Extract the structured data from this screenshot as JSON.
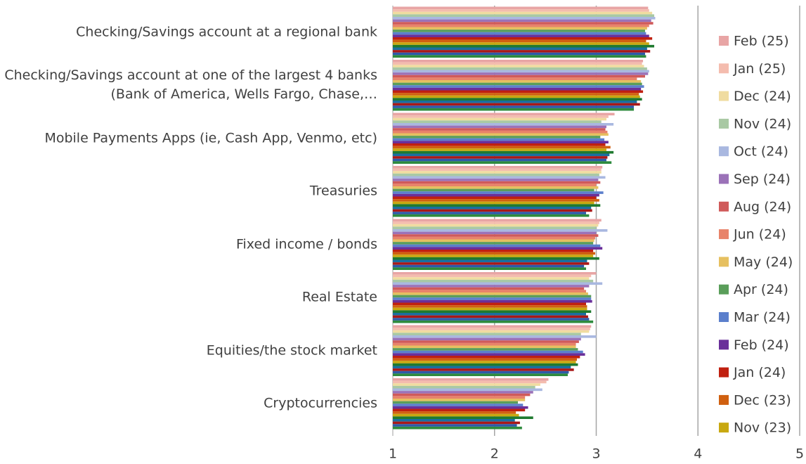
{
  "chart_data": {
    "type": "bar",
    "orientation": "horizontal",
    "categories": [
      "Checking/Savings account at a regional bank",
      "Checking/Savings account at one of the largest 4 banks (Bank of America, Wells Fargo, Chase,…",
      "Mobile Payments Apps (ie, Cash App, Venmo, etc)",
      "Treasuries",
      "Fixed income / bonds",
      "Real Estate",
      "Equities/the stock market",
      "Cryptocurrencies"
    ],
    "xlim": [
      1,
      5
    ],
    "xticks": [
      1,
      2,
      3,
      4,
      5
    ],
    "grid": true,
    "legend": "right",
    "series": [
      {
        "name": "Feb (25)",
        "color": "#e8a5a5",
        "values": [
          3.51,
          3.46,
          3.18,
          3.06,
          3.05,
          3.0,
          2.95,
          2.53
        ]
      },
      {
        "name": "Jan (25)",
        "color": "#f4bcae",
        "values": [
          3.52,
          3.45,
          3.12,
          3.05,
          3.03,
          2.95,
          2.94,
          2.51
        ]
      },
      {
        "name": "Dec (24)",
        "color": "#f0dca0",
        "values": [
          3.55,
          3.47,
          3.1,
          3.05,
          3.02,
          2.93,
          2.93,
          2.45
        ]
      },
      {
        "name": "Nov (24)",
        "color": "#a9c9a4",
        "values": [
          3.57,
          3.5,
          3.05,
          3.03,
          3.0,
          2.97,
          2.85,
          2.4
        ]
      },
      {
        "name": "Oct (24)",
        "color": "#a9b8e0",
        "values": [
          3.58,
          3.52,
          3.17,
          3.09,
          3.11,
          3.06,
          3.0,
          2.47
        ]
      },
      {
        "name": "Sep (24)",
        "color": "#9b72b8",
        "values": [
          3.54,
          3.51,
          3.1,
          3.02,
          3.0,
          2.93,
          2.85,
          2.38
        ]
      },
      {
        "name": "Aug (24)",
        "color": "#d05a5a",
        "values": [
          3.56,
          3.48,
          3.09,
          3.04,
          3.02,
          2.88,
          2.83,
          2.35
        ]
      },
      {
        "name": "Jun (24)",
        "color": "#e8836a",
        "values": [
          3.52,
          3.4,
          3.11,
          3.0,
          2.99,
          2.9,
          2.8,
          2.3
        ]
      },
      {
        "name": "May (24)",
        "color": "#e6c060",
        "values": [
          3.5,
          3.44,
          3.12,
          3.02,
          2.98,
          2.92,
          2.8,
          2.3
        ]
      },
      {
        "name": "Apr (24)",
        "color": "#5a9e5a",
        "values": [
          3.48,
          3.45,
          3.04,
          2.98,
          2.97,
          2.95,
          2.82,
          2.23
        ]
      },
      {
        "name": "Mar (24)",
        "color": "#5b7fcc",
        "values": [
          3.49,
          3.47,
          3.08,
          3.07,
          3.04,
          2.95,
          2.87,
          2.28
        ]
      },
      {
        "name": "Feb (24)",
        "color": "#6a2f9a",
        "values": [
          3.52,
          3.44,
          3.12,
          3.03,
          3.06,
          2.96,
          2.89,
          2.33
        ]
      },
      {
        "name": "Jan (24)",
        "color": "#c02010",
        "values": [
          3.55,
          3.46,
          3.09,
          3.0,
          2.97,
          2.9,
          2.84,
          2.3
        ]
      },
      {
        "name": "Dec (23)",
        "color": "#d06010",
        "values": [
          3.49,
          3.42,
          3.14,
          3.03,
          2.99,
          2.91,
          2.81,
          2.21
        ]
      },
      {
        "name": "Nov (23)",
        "color": "#c8a810",
        "values": [
          3.52,
          3.43,
          3.1,
          2.98,
          2.97,
          2.91,
          2.8,
          2.24
        ]
      },
      {
        "color": "#1f7a2f",
        "values": [
          3.57,
          3.45,
          3.17,
          3.04,
          3.03,
          2.95,
          2.82,
          2.38
        ]
      },
      {
        "color": "#1a6fa0",
        "values": [
          3.5,
          3.4,
          3.13,
          2.95,
          2.91,
          2.9,
          2.75,
          2.2
        ]
      },
      {
        "color": "#a81818",
        "values": [
          3.53,
          3.43,
          3.11,
          2.96,
          2.93,
          2.92,
          2.78,
          2.25
        ]
      },
      {
        "color": "#2e5aa8",
        "values": [
          3.48,
          3.37,
          3.1,
          2.9,
          2.88,
          2.93,
          2.73,
          2.22
        ]
      },
      {
        "color": "#2e8b3e",
        "values": [
          3.49,
          3.37,
          3.15,
          2.93,
          2.9,
          2.97,
          2.72,
          2.27
        ]
      }
    ]
  }
}
